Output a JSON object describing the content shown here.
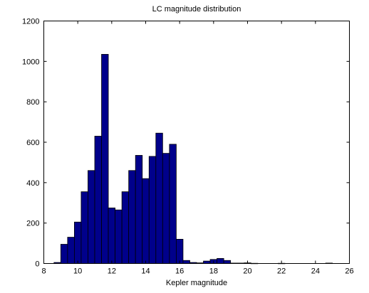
{
  "chart_data": {
    "type": "bar",
    "title": "LC magnitude distribution",
    "xlabel": "Kepler magnitude",
    "ylabel": "",
    "xlim": [
      8,
      26
    ],
    "ylim": [
      0,
      1200
    ],
    "xticks": [
      8,
      10,
      12,
      14,
      16,
      18,
      20,
      22,
      24,
      26
    ],
    "yticks": [
      0,
      200,
      400,
      600,
      800,
      1000,
      1200
    ],
    "grid": false,
    "bar_color": "#00008B",
    "bin_width": 0.4,
    "bins": [
      {
        "x": 8.6,
        "value": 5
      },
      {
        "x": 9.0,
        "value": 95
      },
      {
        "x": 9.4,
        "value": 130
      },
      {
        "x": 9.8,
        "value": 205
      },
      {
        "x": 10.2,
        "value": 355
      },
      {
        "x": 10.6,
        "value": 460
      },
      {
        "x": 11.0,
        "value": 630
      },
      {
        "x": 11.4,
        "value": 1035
      },
      {
        "x": 11.8,
        "value": 275
      },
      {
        "x": 12.2,
        "value": 265
      },
      {
        "x": 12.6,
        "value": 355
      },
      {
        "x": 13.0,
        "value": 460
      },
      {
        "x": 13.4,
        "value": 535
      },
      {
        "x": 13.8,
        "value": 420
      },
      {
        "x": 14.2,
        "value": 530
      },
      {
        "x": 14.6,
        "value": 645
      },
      {
        "x": 15.0,
        "value": 545
      },
      {
        "x": 15.4,
        "value": 590
      },
      {
        "x": 15.8,
        "value": 120
      },
      {
        "x": 16.2,
        "value": 15
      },
      {
        "x": 16.6,
        "value": 5
      },
      {
        "x": 17.0,
        "value": 3
      },
      {
        "x": 17.4,
        "value": 12
      },
      {
        "x": 17.8,
        "value": 20
      },
      {
        "x": 18.2,
        "value": 25
      },
      {
        "x": 18.6,
        "value": 15
      },
      {
        "x": 19.0,
        "value": 2
      },
      {
        "x": 19.4,
        "value": 2
      },
      {
        "x": 19.8,
        "value": 3
      },
      {
        "x": 20.2,
        "value": 1
      },
      {
        "x": 21.8,
        "value": 1
      },
      {
        "x": 24.6,
        "value": 2
      }
    ]
  }
}
